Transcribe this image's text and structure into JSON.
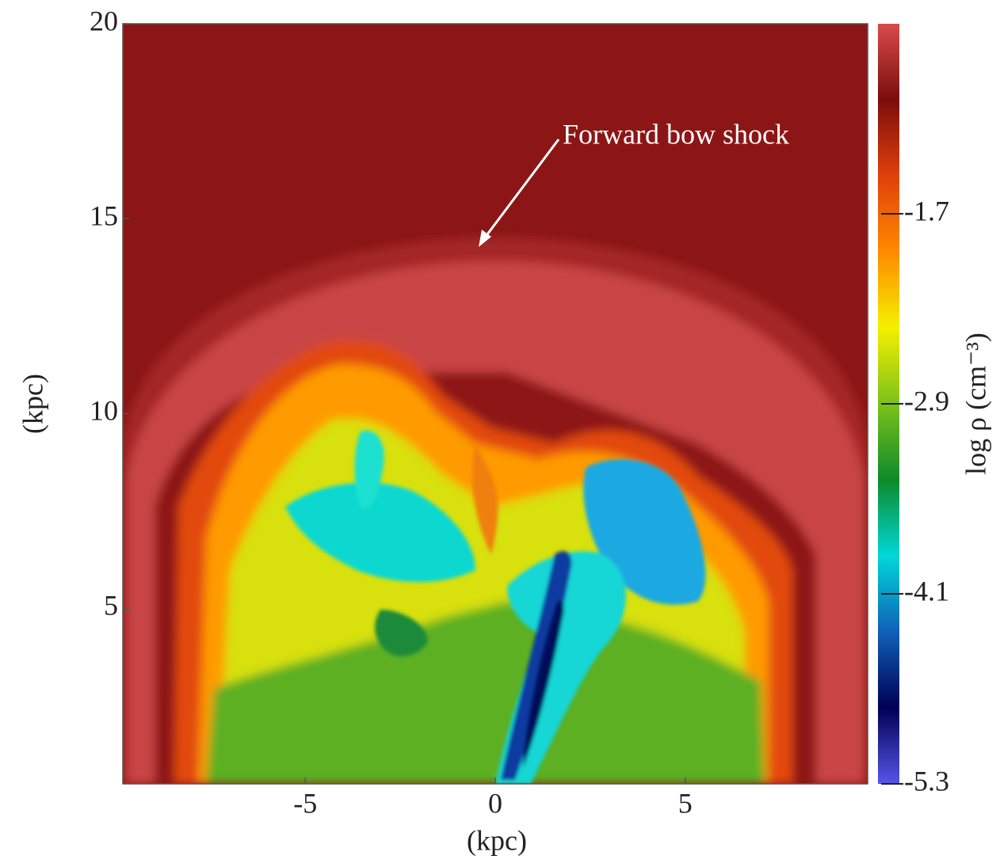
{
  "chart_data": {
    "type": "heatmap",
    "x_label": "(kpc)",
    "y_label": "(kpc)",
    "xlim": [
      -9.8,
      9.8
    ],
    "xticks": [
      -5,
      0,
      5
    ],
    "ylim": [
      0.5,
      20
    ],
    "yticks": [
      5,
      10,
      15,
      20
    ],
    "colorbar": {
      "label": "log ρ (cm⁻³)",
      "lim": [
        -5.3,
        -0.5
      ],
      "ticks": [
        -1.7,
        -2.9,
        -4.1,
        -5.3
      ],
      "colors": [
        "#d94b4b",
        "#7a0d0d",
        "#e0400a",
        "#ff8a00",
        "#f5f000",
        "#7cc21a",
        "#0e8a2a",
        "#00d8d8",
        "#1060b8",
        "#000055",
        "#5555e8"
      ]
    },
    "annotation": "Forward bow shock"
  }
}
